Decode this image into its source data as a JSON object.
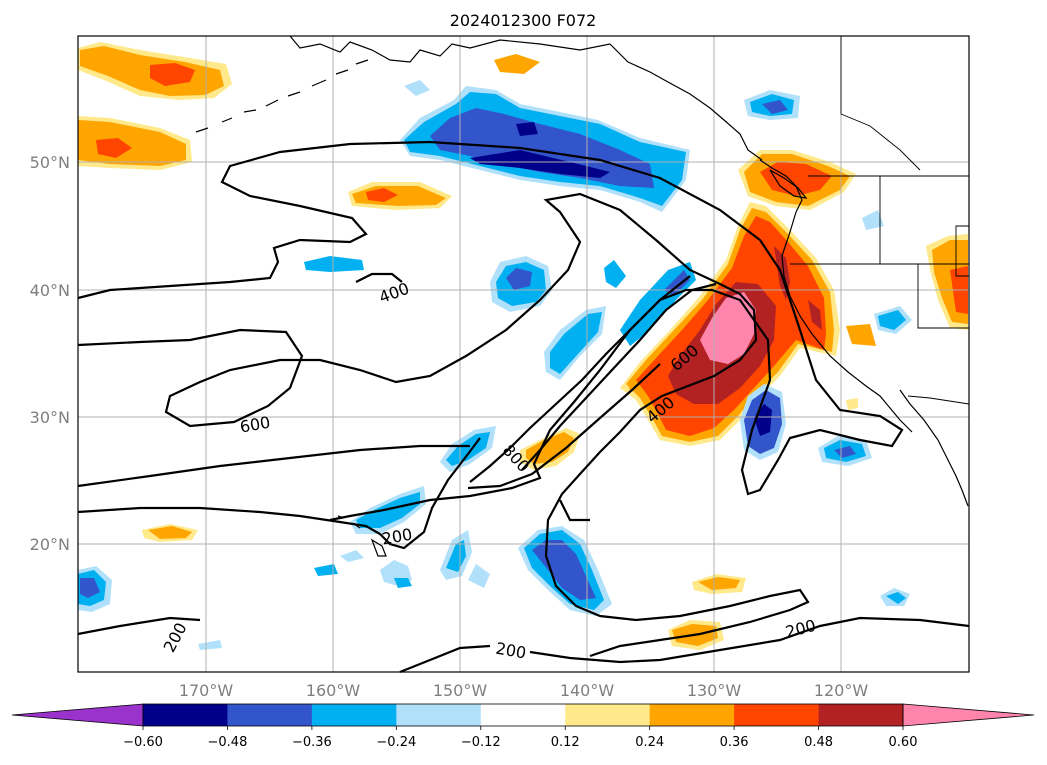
{
  "title": "2024012300 F072",
  "longitude_labels": [
    "170°W",
    "160°W",
    "150°W",
    "140°W",
    "130°W",
    "120°W"
  ],
  "latitude_labels": [
    "50°N",
    "40°N",
    "30°N",
    "20°N"
  ],
  "colorbar": {
    "ticks": [
      "−0.60",
      "−0.48",
      "−0.36",
      "−0.24",
      "−0.12",
      "0.12",
      "0.24",
      "0.36",
      "0.48",
      "0.60"
    ],
    "colors": [
      "#9933cc",
      "#00008b",
      "#3355cc",
      "#00b0f0",
      "#b0e0fa",
      "#ffffff",
      "#ffe98a",
      "#ffa500",
      "#ff4500",
      "#b22222",
      "#ff85ad"
    ],
    "extend": "both"
  },
  "contour_labels": [
    "400",
    "600",
    "600",
    "400",
    "800",
    "200",
    "200",
    "200",
    "200"
  ],
  "colors": {
    "grid": "#b0b0b0",
    "coast": "#000000",
    "contour": "#000000"
  }
}
